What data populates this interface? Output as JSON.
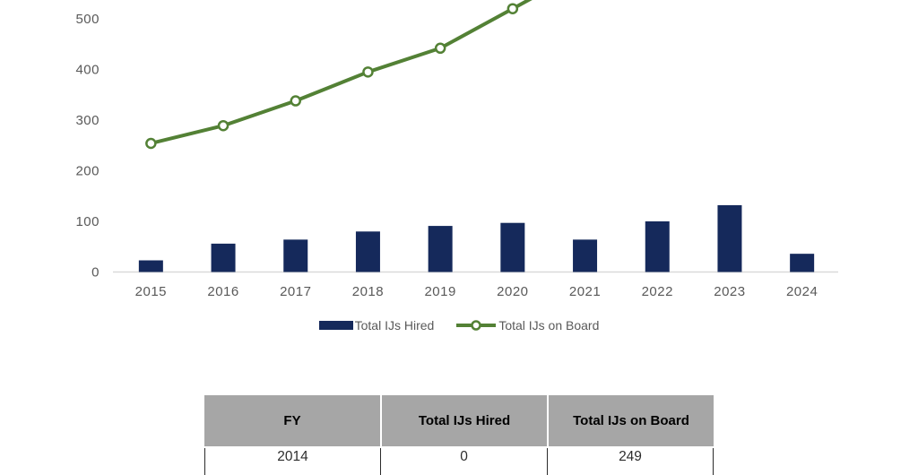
{
  "page": {
    "background": "#ffffff"
  },
  "chart_data": {
    "type": "combo-bar-line",
    "title": "",
    "xlabel": "",
    "ylabel": "",
    "gridlines": false,
    "legend_position": "bottom",
    "yticks": [
      0,
      100,
      200,
      300,
      400,
      500
    ],
    "axis_text_color": "#595959",
    "axis_line_color": "#d9d9d9",
    "view_note": "top of chart cropped; line series exits above visible area after 2020",
    "categories": [
      "2015",
      "2016",
      "2017",
      "2018",
      "2019",
      "2020",
      "2021",
      "2022",
      "2023",
      "2024"
    ],
    "series": [
      {
        "name": "Total IJs Hired",
        "type": "bar",
        "color": "#15295b",
        "values": [
          23,
          56,
          64,
          80,
          91,
          97,
          64,
          100,
          132,
          36
        ]
      },
      {
        "name": "Total IJs on Board",
        "type": "line",
        "color": "#538135",
        "marker": "open-circle",
        "values": [
          254,
          289,
          338,
          395,
          442,
          520,
          null,
          null,
          null,
          null
        ]
      }
    ]
  },
  "table": {
    "header_bg": "#a6a6a6",
    "headers": [
      "FY",
      "Total IJs Hired",
      "Total IJs on Board"
    ],
    "rows": [
      [
        "2014",
        "0",
        "249"
      ]
    ]
  }
}
